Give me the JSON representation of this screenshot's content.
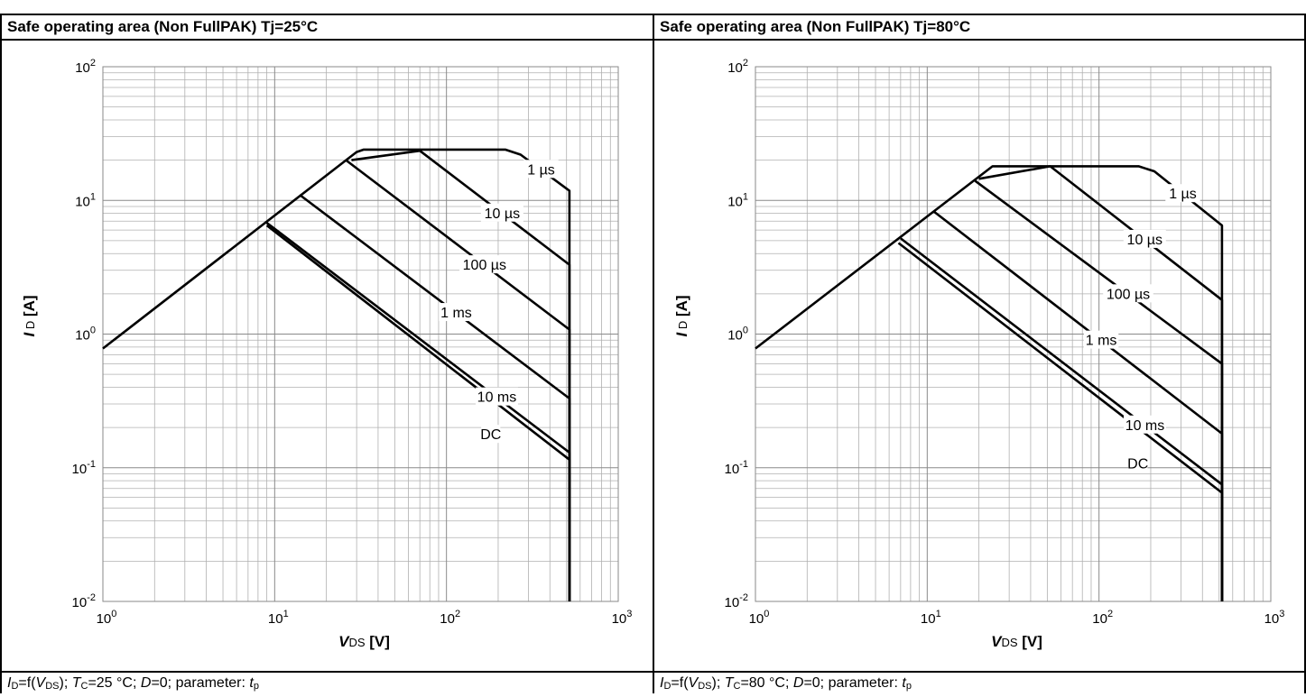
{
  "panels": [
    {
      "title": "Safe operating area (Non FullPAK) Tj=25°C",
      "caption": {
        "id_sym": "I",
        "id_sub": "D",
        "eq": "=f(",
        "vds_sym": "V",
        "vds_sub": "DS",
        "after_vds": ");  ",
        "tc_sym": "T",
        "tc_sub": "C",
        "tc_val": "=25 °C; ",
        "d_sym": "D",
        "d_val": "=0; parameter: ",
        "tp_sym": "t",
        "tp_sub": "p"
      }
    },
    {
      "title": "Safe operating area (Non FullPAK) Tj=80°C",
      "caption": {
        "id_sym": "I",
        "id_sub": "D",
        "eq": "=f(",
        "vds_sym": "V",
        "vds_sub": "DS",
        "after_vds": ");  ",
        "tc_sym": "T",
        "tc_sub": "C",
        "tc_val": "=80 °C; ",
        "d_sym": "D",
        "d_val": "=0; parameter: ",
        "tp_sym": "t",
        "tp_sub": "p"
      }
    }
  ],
  "chart_data": [
    {
      "type": "line",
      "title": "Safe operating area (Non FullPAK) Tj=25°C",
      "x_scale": "log",
      "y_scale": "log",
      "xlim": [
        1,
        1000
      ],
      "ylim": [
        0.01,
        100
      ],
      "xlabel": "V_DS [V]",
      "ylabel": "I_D [A]",
      "grid": true,
      "x_ticks": [
        1,
        10,
        100,
        1000
      ],
      "y_ticks": [
        0.01,
        0.1,
        1,
        10,
        100
      ],
      "series": [
        {
          "name": "1 µs",
          "points": [
            [
              1,
              0.78
            ],
            [
              30,
              23
            ],
            [
              33,
              24
            ],
            [
              220,
              24
            ],
            [
              270,
              22
            ],
            [
              520,
              11.8
            ],
            [
              520,
              0.01
            ]
          ]
        },
        {
          "name": "10 µs",
          "points": [
            [
              28,
              20
            ],
            [
              70,
              23.5
            ],
            [
              520,
              3.3
            ],
            [
              520,
              0.01
            ]
          ]
        },
        {
          "name": "100 µs",
          "points": [
            [
              26,
              20
            ],
            [
              520,
              1.08
            ],
            [
              520,
              0.01
            ]
          ]
        },
        {
          "name": "1 ms",
          "points": [
            [
              14,
              11
            ],
            [
              520,
              0.33
            ],
            [
              520,
              0.01
            ]
          ]
        },
        {
          "name": "10 ms",
          "points": [
            [
              9,
              6.8
            ],
            [
              520,
              0.13
            ],
            [
              520,
              0.01
            ]
          ]
        },
        {
          "name": "DC",
          "points": [
            [
              9,
              6.5
            ],
            [
              520,
              0.115
            ],
            [
              520,
              0.01
            ]
          ]
        }
      ]
    },
    {
      "type": "line",
      "title": "Safe operating area (Non FullPAK) Tj=80°C",
      "x_scale": "log",
      "y_scale": "log",
      "xlim": [
        1,
        1000
      ],
      "ylim": [
        0.01,
        100
      ],
      "xlabel": "V_DS [V]",
      "ylabel": "I_D [A]",
      "grid": true,
      "x_ticks": [
        1,
        10,
        100,
        1000
      ],
      "y_ticks": [
        0.01,
        0.1,
        1,
        10,
        100
      ],
      "series": [
        {
          "name": "1 µs",
          "points": [
            [
              1,
              0.78
            ],
            [
              24,
              18
            ],
            [
              170,
              18
            ],
            [
              210,
              16.5
            ],
            [
              520,
              6.5
            ],
            [
              520,
              0.01
            ]
          ]
        },
        {
          "name": "10 µs",
          "points": [
            [
              20,
              14.5
            ],
            [
              52,
              18
            ],
            [
              520,
              1.8
            ],
            [
              520,
              0.01
            ]
          ]
        },
        {
          "name": "100 µs",
          "points": [
            [
              19,
              14
            ],
            [
              520,
              0.6
            ],
            [
              520,
              0.01
            ]
          ]
        },
        {
          "name": "1 ms",
          "points": [
            [
              11,
              8.2
            ],
            [
              520,
              0.18
            ],
            [
              520,
              0.01
            ]
          ]
        },
        {
          "name": "10 ms",
          "points": [
            [
              7,
              5.2
            ],
            [
              520,
              0.075
            ],
            [
              520,
              0.01
            ]
          ]
        },
        {
          "name": "DC",
          "points": [
            [
              6.8,
              4.8
            ],
            [
              520,
              0.065
            ],
            [
              520,
              0.01
            ]
          ]
        }
      ]
    }
  ]
}
